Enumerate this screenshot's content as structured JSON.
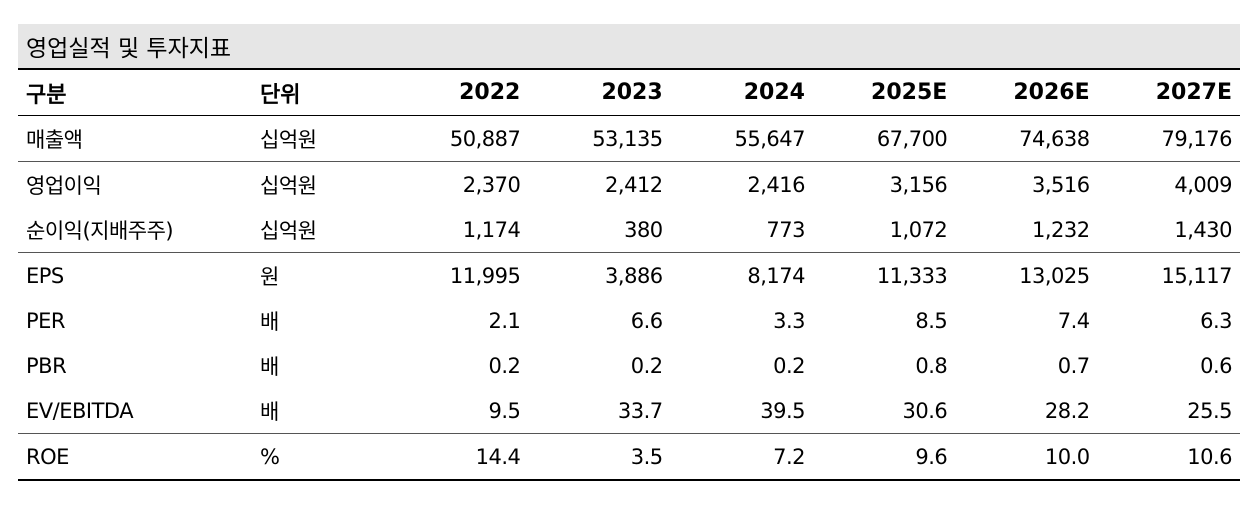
{
  "title": "영업실적 및 투자지표",
  "headers": [
    "구분",
    "단위",
    "2022",
    "2023",
    "2024",
    "2025E",
    "2026E",
    "2027E"
  ],
  "rows": [
    {
      "label": "매출액",
      "unit": "십억원",
      "values": [
        "50,887",
        "53,135",
        "55,647",
        "67,700",
        "74,638",
        "79,176"
      ]
    },
    {
      "label": "영업이익",
      "unit": "십억원",
      "values": [
        "2,370",
        "2,412",
        "2,416",
        "3,156",
        "3,516",
        "4,009"
      ]
    },
    {
      "label": "순이익(지배주주)",
      "unit": "십억원",
      "values": [
        "1,174",
        "380",
        "773",
        "1,072",
        "1,232",
        "1,430"
      ]
    },
    {
      "label": "EPS",
      "unit": "원",
      "values": [
        "11,995",
        "3,886",
        "8,174",
        "11,333",
        "13,025",
        "15,117"
      ]
    },
    {
      "label": "PER",
      "unit": "배",
      "values": [
        "2.1",
        "6.6",
        "3.3",
        "8.5",
        "7.4",
        "6.3"
      ]
    },
    {
      "label": "PBR",
      "unit": "배",
      "values": [
        "0.2",
        "0.2",
        "0.2",
        "0.8",
        "0.7",
        "0.6"
      ]
    },
    {
      "label": "EV/EBITDA",
      "unit": "배",
      "values": [
        "9.5",
        "33.7",
        "39.5",
        "30.6",
        "28.2",
        "25.5"
      ]
    },
    {
      "label": "ROE",
      "unit": "%",
      "values": [
        "14.4",
        "3.5",
        "7.2",
        "9.6",
        "10.0",
        "10.6"
      ]
    }
  ]
}
